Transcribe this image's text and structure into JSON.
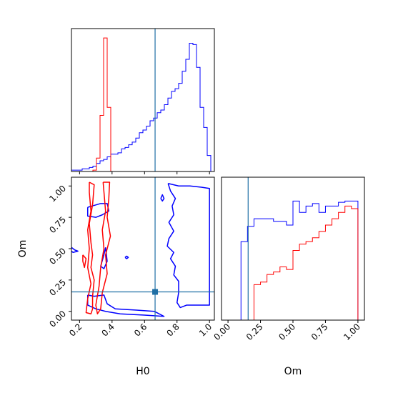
{
  "chart_data": {
    "type": "corner",
    "parameters": [
      "H0",
      "Om"
    ],
    "truth": {
      "H0": 0.665,
      "Om": 0.155
    },
    "colors": {
      "series_a": "#0000ff",
      "series_b": "#ff0000",
      "truth": "#1f6fa5"
    },
    "panels": [
      {
        "id": "hist-H0",
        "type": "step-histogram",
        "x_range": [
          0.15,
          1.03
        ],
        "x_ticks": [
          0.2,
          0.4,
          0.6,
          0.8,
          1.0
        ],
        "x_tick_labels_shown": false,
        "bins": [
          0.15,
          0.172,
          0.194,
          0.216,
          0.238,
          0.26,
          0.282,
          0.304,
          0.326,
          0.348,
          0.37,
          0.392,
          0.414,
          0.436,
          0.458,
          0.48,
          0.502,
          0.524,
          0.546,
          0.568,
          0.59,
          0.612,
          0.634,
          0.656,
          0.678,
          0.7,
          0.722,
          0.744,
          0.766,
          0.788,
          0.81,
          0.832,
          0.854,
          0.876,
          0.898,
          0.92,
          0.942,
          0.964,
          0.986,
          1.008,
          1.03
        ],
        "series": [
          {
            "color": "#0000ff",
            "values": [
              1,
              1,
              1,
              2,
              2,
              3,
              4,
              6,
              8,
              9,
              11,
              13,
              13,
              14,
              17,
              18,
              20,
              22,
              25,
              29,
              31,
              34,
              38,
              40,
              44,
              46,
              50,
              55,
              60,
              62,
              66,
              75,
              84,
              96,
              95,
              78,
              48,
              33,
              12,
              0
            ]
          },
          {
            "color": "#ff0000",
            "values": [
              0,
              0,
              0,
              0,
              0,
              0,
              1,
              10,
              42,
              100,
              48,
              0,
              0,
              0,
              0,
              0,
              0,
              0,
              0,
              0,
              0,
              0,
              0,
              0,
              0,
              0,
              0,
              0,
              0,
              0,
              0,
              0,
              0,
              0,
              0,
              0,
              0,
              0,
              0,
              0
            ]
          }
        ]
      },
      {
        "id": "contour-H0-Om",
        "type": "contour",
        "x_range": [
          0.15,
          1.03
        ],
        "y_range": [
          -0.07,
          1.07
        ],
        "x_ticks": [
          0.2,
          0.4,
          0.6,
          0.8,
          1.0
        ],
        "x_tick_labels": [
          "0.2",
          "0.4",
          "0.6",
          "0.8",
          "1.0"
        ],
        "y_ticks": [
          0.0,
          0.25,
          0.5,
          0.75,
          1.0
        ],
        "y_tick_labels": [
          "0.00",
          "0.25",
          "0.50",
          "0.75",
          "1.00"
        ],
        "xlabel": "H0",
        "ylabel": "Om",
        "contours": [
          {
            "color": "#0000ff",
            "points": [
              [
                0.745,
                1.02
              ],
              [
                0.81,
                1.0
              ],
              [
                0.88,
                1.0
              ],
              [
                0.95,
                0.99
              ],
              [
                1.0,
                0.98
              ],
              [
                1.0,
                0.05
              ],
              [
                0.93,
                0.05
              ],
              [
                0.86,
                0.05
              ],
              [
                0.82,
                0.03
              ],
              [
                0.8,
                0.07
              ],
              [
                0.81,
                0.15
              ],
              [
                0.81,
                0.24
              ],
              [
                0.78,
                0.29
              ],
              [
                0.79,
                0.36
              ],
              [
                0.76,
                0.42
              ],
              [
                0.78,
                0.47
              ],
              [
                0.74,
                0.52
              ],
              [
                0.75,
                0.58
              ],
              [
                0.78,
                0.64
              ],
              [
                0.75,
                0.71
              ],
              [
                0.78,
                0.77
              ],
              [
                0.77,
                0.84
              ],
              [
                0.79,
                0.9
              ],
              [
                0.76,
                0.96
              ],
              [
                0.745,
                1.02
              ]
            ]
          },
          {
            "color": "#0000ff",
            "points": [
              [
                0.25,
                0.83
              ],
              [
                0.33,
                0.86
              ],
              [
                0.37,
                0.86
              ],
              [
                0.38,
                0.8
              ],
              [
                0.34,
                0.77
              ],
              [
                0.3,
                0.75
              ],
              [
                0.25,
                0.76
              ],
              [
                0.25,
                0.83
              ]
            ]
          },
          {
            "color": "#0000ff",
            "points": [
              [
                0.25,
                0.13
              ],
              [
                0.29,
                0.12
              ],
              [
                0.35,
                0.13
              ],
              [
                0.37,
                0.06
              ],
              [
                0.42,
                0.02
              ],
              [
                0.55,
                0.01
              ],
              [
                0.66,
                0.0
              ],
              [
                0.72,
                -0.04
              ],
              [
                0.6,
                -0.03
              ],
              [
                0.45,
                -0.02
              ],
              [
                0.36,
                0.0
              ],
              [
                0.3,
                0.02
              ],
              [
                0.25,
                0.05
              ],
              [
                0.25,
                0.13
              ]
            ]
          },
          {
            "color": "#0000ff",
            "points": [
              [
                0.36,
                0.51
              ],
              [
                0.37,
                0.4
              ],
              [
                0.35,
                0.34
              ],
              [
                0.33,
                0.36
              ],
              [
                0.35,
                0.45
              ],
              [
                0.36,
                0.51
              ]
            ]
          },
          {
            "color": "#0000ff",
            "points": [
              [
                0.15,
                0.51
              ],
              [
                0.17,
                0.49
              ],
              [
                0.19,
                0.48
              ],
              [
                0.16,
                0.47
              ],
              [
                0.15,
                0.48
              ]
            ]
          },
          {
            "color": "#0000ff",
            "points": [
              [
                0.48,
                0.43
              ],
              [
                0.49,
                0.44
              ],
              [
                0.5,
                0.43
              ],
              [
                0.49,
                0.42
              ],
              [
                0.48,
                0.43
              ]
            ]
          },
          {
            "color": "#0000ff",
            "points": [
              [
                0.7,
                0.9
              ],
              [
                0.71,
                0.93
              ],
              [
                0.72,
                0.9
              ],
              [
                0.71,
                0.88
              ],
              [
                0.7,
                0.9
              ]
            ]
          },
          {
            "color": "#ff0000",
            "points": [
              [
                0.26,
                1.03
              ],
              [
                0.29,
                1.01
              ],
              [
                0.28,
                0.85
              ],
              [
                0.26,
                0.7
              ],
              [
                0.27,
                0.55
              ],
              [
                0.28,
                0.45
              ],
              [
                0.27,
                0.35
              ],
              [
                0.29,
                0.25
              ],
              [
                0.28,
                0.12
              ],
              [
                0.28,
                0.02
              ],
              [
                0.27,
                -0.02
              ],
              [
                0.24,
                -0.01
              ],
              [
                0.25,
                0.1
              ],
              [
                0.27,
                0.22
              ],
              [
                0.25,
                0.35
              ],
              [
                0.26,
                0.5
              ],
              [
                0.25,
                0.65
              ],
              [
                0.27,
                0.8
              ],
              [
                0.26,
                0.95
              ],
              [
                0.26,
                1.03
              ]
            ]
          },
          {
            "color": "#ff0000",
            "points": [
              [
                0.345,
                1.03
              ],
              [
                0.385,
                1.03
              ],
              [
                0.38,
                0.9
              ],
              [
                0.37,
                0.75
              ],
              [
                0.39,
                0.6
              ],
              [
                0.36,
                0.45
              ],
              [
                0.37,
                0.3
              ],
              [
                0.34,
                0.15
              ],
              [
                0.33,
                0.02
              ],
              [
                0.31,
                -0.02
              ],
              [
                0.3,
                0.05
              ],
              [
                0.32,
                0.2
              ],
              [
                0.33,
                0.35
              ],
              [
                0.35,
                0.5
              ],
              [
                0.34,
                0.65
              ],
              [
                0.36,
                0.8
              ],
              [
                0.345,
                1.03
              ]
            ]
          },
          {
            "color": "#ff0000",
            "points": [
              [
                0.22,
                0.45
              ],
              [
                0.24,
                0.42
              ],
              [
                0.23,
                0.35
              ],
              [
                0.22,
                0.4
              ],
              [
                0.22,
                0.45
              ]
            ]
          }
        ]
      },
      {
        "id": "hist-Om",
        "type": "step-histogram",
        "x_range": [
          -0.05,
          1.05
        ],
        "x_ticks": [
          0.0,
          0.25,
          0.5,
          0.75,
          1.0
        ],
        "x_tick_labels": [
          "0.00",
          "0.25",
          "0.50",
          "0.75",
          "1.00"
        ],
        "xlabel": "Om",
        "bins": [
          0.0,
          0.05,
          0.1,
          0.15,
          0.2,
          0.25,
          0.3,
          0.35,
          0.4,
          0.45,
          0.5,
          0.55,
          0.6,
          0.65,
          0.7,
          0.75,
          0.8,
          0.85,
          0.9,
          0.95,
          1.0
        ],
        "series": [
          {
            "color": "#0000ff",
            "values": [
              0,
              0,
              62,
              74,
              80,
              80,
              80,
              78,
              78,
              75,
              94,
              85,
              90,
              92,
              85,
              90,
              90,
              93,
              94,
              94
            ]
          },
          {
            "color": "#ff0000",
            "values": [
              0,
              0,
              0,
              0,
              28,
              30,
              36,
              38,
              42,
              40,
              55,
              60,
              62,
              65,
              70,
              75,
              80,
              85,
              90,
              88
            ]
          }
        ]
      }
    ]
  }
}
